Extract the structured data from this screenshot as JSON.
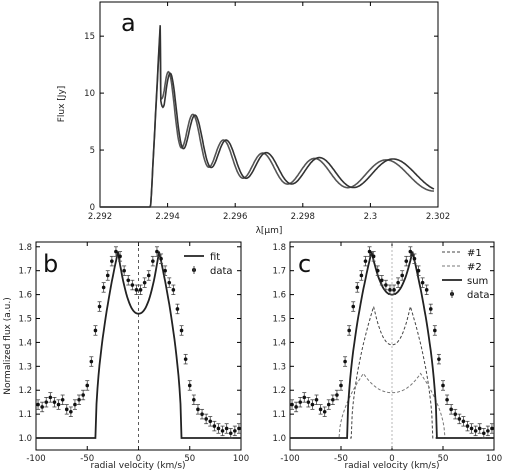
{
  "chart_data": [
    {
      "panel": "a",
      "type": "line",
      "xlabel": "λ[μm]",
      "ylabel": "Flux [Jy]",
      "xlim": [
        2.292,
        2.302
      ],
      "ylim": [
        0,
        18
      ],
      "xticks": [
        2.292,
        2.294,
        2.296,
        2.298,
        2.3,
        2.302
      ],
      "xticklabels": [
        "2.292",
        "2.294",
        "2.296",
        "2.298",
        "2.3",
        "2.302"
      ],
      "yticks": [
        0,
        5,
        10,
        15
      ],
      "yticklabels": [
        "0",
        "5",
        "10",
        "15"
      ],
      "bandhead": 2.2935,
      "peak": [
        2.2938,
        17.1
      ],
      "band_end": 2.3019,
      "series": [
        {
          "color": "#333333"
        },
        {
          "color": "#555555"
        }
      ]
    },
    {
      "panel": "b",
      "type": "line",
      "xlabel": "radial velocity (km/s)",
      "ylabel": "Normalized flux (a.u.)",
      "xlim": [
        -100,
        100
      ],
      "ylim": [
        0.95,
        1.82
      ],
      "xticks": [
        -100,
        -50,
        0,
        50,
        100
      ],
      "xticklabels": [
        "-100",
        "-50",
        "0",
        "50",
        "100"
      ],
      "yticks": [
        1.0,
        1.1,
        1.2,
        1.3,
        1.4,
        1.5,
        1.6,
        1.7,
        1.8
      ],
      "yticklabels": [
        "1.0",
        "1.1",
        "1.2",
        "1.3",
        "1.4",
        "1.5",
        "1.6",
        "1.7",
        "1.8"
      ],
      "legend": [
        {
          "label": "fit",
          "style": "solid"
        },
        {
          "label": "data",
          "style": "marker"
        }
      ],
      "fit": {
        "peak_v": 20,
        "peak": 1.78,
        "center": 1.52,
        "wing_v": 42
      },
      "data": {
        "x": [
          -98,
          -94,
          -90,
          -86,
          -82,
          -78,
          -74,
          -70,
          -66,
          -62,
          -58,
          -54,
          -50,
          -46,
          -42,
          -38,
          -34,
          -30,
          -26,
          -22,
          -18,
          -14,
          -10,
          -6,
          -2,
          2,
          6,
          10,
          14,
          18,
          22,
          26,
          30,
          34,
          38,
          42,
          46,
          50,
          54,
          58,
          62,
          66,
          70,
          74,
          78,
          82,
          86,
          90,
          94,
          98
        ],
        "y": [
          1.14,
          1.13,
          1.15,
          1.17,
          1.15,
          1.14,
          1.16,
          1.12,
          1.11,
          1.14,
          1.16,
          1.18,
          1.22,
          1.32,
          1.45,
          1.55,
          1.63,
          1.68,
          1.74,
          1.78,
          1.76,
          1.7,
          1.66,
          1.64,
          1.62,
          1.62,
          1.65,
          1.68,
          1.74,
          1.78,
          1.75,
          1.7,
          1.65,
          1.62,
          1.54,
          1.45,
          1.33,
          1.22,
          1.16,
          1.12,
          1.1,
          1.08,
          1.07,
          1.05,
          1.04,
          1.03,
          1.04,
          1.02,
          1.03,
          1.04
        ]
      }
    },
    {
      "panel": "c",
      "type": "line",
      "xlabel": "radial velocity (km/s)",
      "xlim": [
        -100,
        100
      ],
      "ylim": [
        0.95,
        1.82
      ],
      "xticks": [
        -100,
        -50,
        0,
        50,
        100
      ],
      "xticklabels": [
        "-100",
        "-50",
        "0",
        "50",
        "100"
      ],
      "yticks": [
        1.0,
        1.1,
        1.2,
        1.3,
        1.4,
        1.5,
        1.6,
        1.7,
        1.8
      ],
      "yticklabels": [
        "1.0",
        "1.1",
        "1.2",
        "1.3",
        "1.4",
        "1.5",
        "1.6",
        "1.7",
        "1.8"
      ],
      "legend": [
        {
          "label": "#1",
          "style": "dashed"
        },
        {
          "label": "#2",
          "style": "dashed"
        },
        {
          "label": "sum",
          "style": "solid"
        },
        {
          "label": "data",
          "style": "marker"
        }
      ],
      "components": {
        "#1": {
          "peak_v": 18,
          "peak": 1.55,
          "center": 1.39,
          "wing_v": 40
        },
        "#2": {
          "peak_v": 28,
          "peak": 1.27,
          "center": 1.19,
          "wing_v": 52
        },
        "sum": {
          "peak_v": 20,
          "peak": 1.78,
          "center": 1.6,
          "wing_v": 44
        }
      },
      "data": {
        "x": [
          -98,
          -94,
          -90,
          -86,
          -82,
          -78,
          -74,
          -70,
          -66,
          -62,
          -58,
          -54,
          -50,
          -46,
          -42,
          -38,
          -34,
          -30,
          -26,
          -22,
          -18,
          -14,
          -10,
          -6,
          -2,
          2,
          6,
          10,
          14,
          18,
          22,
          26,
          30,
          34,
          38,
          42,
          46,
          50,
          54,
          58,
          62,
          66,
          70,
          74,
          78,
          82,
          86,
          90,
          94,
          98
        ],
        "y": [
          1.14,
          1.13,
          1.15,
          1.17,
          1.15,
          1.14,
          1.16,
          1.12,
          1.11,
          1.14,
          1.16,
          1.18,
          1.22,
          1.32,
          1.45,
          1.55,
          1.63,
          1.68,
          1.74,
          1.78,
          1.76,
          1.7,
          1.66,
          1.64,
          1.62,
          1.62,
          1.65,
          1.68,
          1.74,
          1.78,
          1.75,
          1.7,
          1.65,
          1.62,
          1.54,
          1.45,
          1.33,
          1.22,
          1.16,
          1.12,
          1.1,
          1.08,
          1.07,
          1.05,
          1.04,
          1.03,
          1.04,
          1.02,
          1.03,
          1.04
        ]
      }
    }
  ],
  "panel_labels": {
    "a": "a",
    "b": "b",
    "c": "c"
  }
}
